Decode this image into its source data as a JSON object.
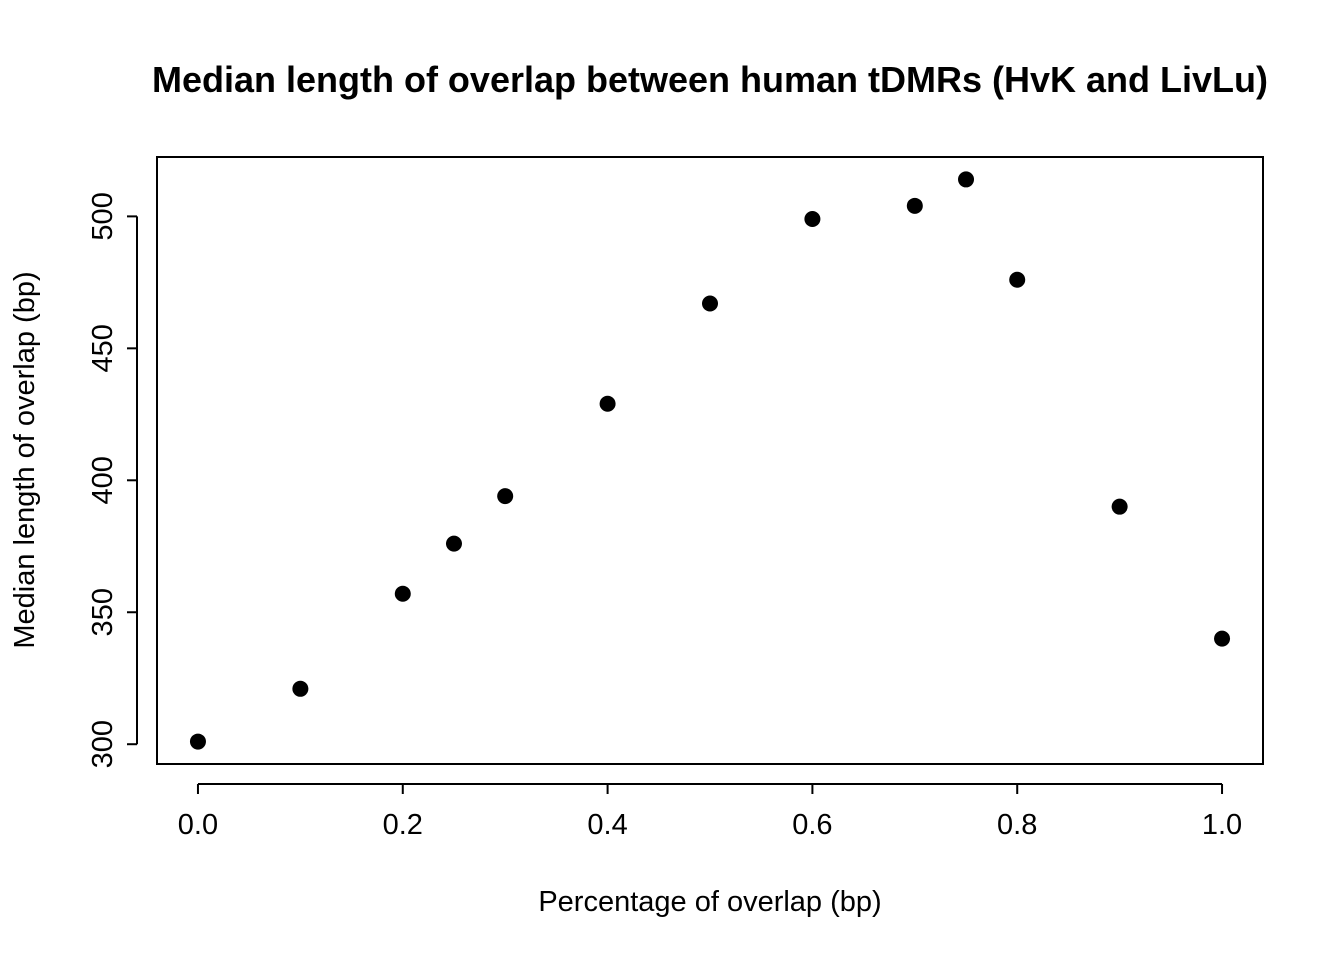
{
  "chart_data": {
    "type": "scatter",
    "title": "Median length of overlap between human tDMRs (HvK and LivLu)",
    "xlabel": "Percentage of overlap (bp)",
    "ylabel": "Median length of overlap (bp)",
    "xlim": [
      -0.04,
      1.04
    ],
    "ylim": [
      292.5,
      522.5
    ],
    "xticks": [
      0.0,
      0.2,
      0.4,
      0.6,
      0.8,
      1.0
    ],
    "xtick_labels": [
      "0.0",
      "0.2",
      "0.4",
      "0.6",
      "0.8",
      "1.0"
    ],
    "yticks": [
      300,
      350,
      400,
      450,
      500
    ],
    "ytick_labels": [
      "300",
      "350",
      "400",
      "450",
      "500"
    ],
    "grid": false,
    "series": [
      {
        "color": "#000000",
        "points": [
          {
            "x": 0.0,
            "y": 301
          },
          {
            "x": 0.1,
            "y": 321
          },
          {
            "x": 0.2,
            "y": 357
          },
          {
            "x": 0.25,
            "y": 376
          },
          {
            "x": 0.3,
            "y": 394
          },
          {
            "x": 0.4,
            "y": 429
          },
          {
            "x": 0.5,
            "y": 467
          },
          {
            "x": 0.6,
            "y": 499
          },
          {
            "x": 0.7,
            "y": 504
          },
          {
            "x": 0.75,
            "y": 514
          },
          {
            "x": 0.8,
            "y": 476
          },
          {
            "x": 0.9,
            "y": 390
          },
          {
            "x": 1.0,
            "y": 340
          }
        ]
      }
    ]
  }
}
